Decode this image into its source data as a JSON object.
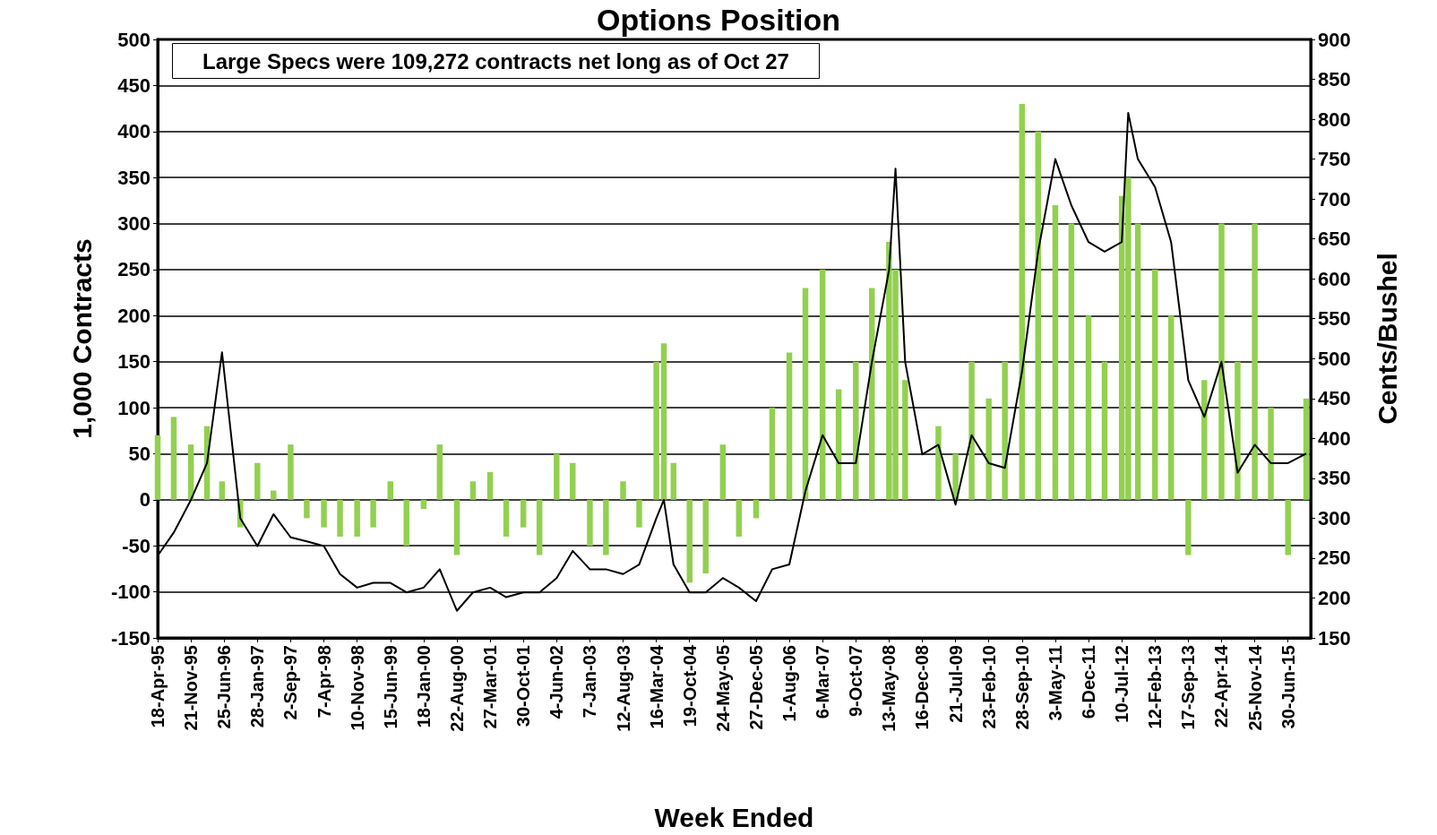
{
  "chart_data": {
    "type": "bar",
    "title": "Options Position",
    "xlabel": "Week Ended",
    "ylabel": "1,000 Contracts",
    "y2label": "Cents/Bushel",
    "annotations": [
      "Large Specs were 109,272 contracts net long as of Oct 27"
    ],
    "x": [
      "1995-04-18",
      "1995-08-01",
      "1995-11-21",
      "1996-03-05",
      "1996-06-11",
      "1996-10-08",
      "1997-01-28",
      "1997-05-13",
      "1997-09-02",
      "1997-12-16",
      "1998-04-07",
      "1998-07-21",
      "1998-11-10",
      "1999-02-23",
      "1999-06-15",
      "1999-09-28",
      "2000-01-18",
      "2000-05-02",
      "2000-08-22",
      "2000-12-05",
      "2001-03-27",
      "2001-07-10",
      "2001-10-30",
      "2002-02-12",
      "2002-06-04",
      "2002-09-17",
      "2003-01-07",
      "2003-04-22",
      "2003-08-12",
      "2003-11-25",
      "2004-03-16",
      "2004-05-04",
      "2004-07-06",
      "2004-10-19",
      "2005-02-01",
      "2005-05-24",
      "2005-09-06",
      "2005-12-27",
      "2006-04-11",
      "2006-08-01",
      "2006-11-14",
      "2007-03-06",
      "2007-06-19",
      "2007-10-09",
      "2008-01-22",
      "2008-05-13",
      "2008-06-24",
      "2008-08-26",
      "2008-12-16",
      "2009-03-31",
      "2009-07-21",
      "2009-11-03",
      "2010-02-23",
      "2010-06-08",
      "2010-09-28",
      "2011-01-11",
      "2011-05-03",
      "2011-08-16",
      "2011-12-06",
      "2012-03-20",
      "2012-07-10",
      "2012-08-21",
      "2012-10-23",
      "2013-02-12",
      "2013-05-28",
      "2013-09-17",
      "2013-12-31",
      "2014-04-22",
      "2014-08-05",
      "2014-11-25",
      "2015-03-10",
      "2015-06-30",
      "2015-10-27"
    ],
    "xlim": [
      "1995-04-18",
      "2015-11-25"
    ],
    "xticks": [
      {
        "value": "1995-04-18",
        "label": "18-Apr-95"
      },
      {
        "value": "1995-11-21",
        "label": "21-Nov-95"
      },
      {
        "value": "1996-06-25",
        "label": "25-Jun-96"
      },
      {
        "value": "1997-01-28",
        "label": "28-Jan-97"
      },
      {
        "value": "1997-09-02",
        "label": "2-Sep-97"
      },
      {
        "value": "1998-04-07",
        "label": "7-Apr-98"
      },
      {
        "value": "1998-11-10",
        "label": "10-Nov-98"
      },
      {
        "value": "1999-06-15",
        "label": "15-Jun-99"
      },
      {
        "value": "2000-01-18",
        "label": "18-Jan-00"
      },
      {
        "value": "2000-08-22",
        "label": "22-Aug-00"
      },
      {
        "value": "2001-03-27",
        "label": "27-Mar-01"
      },
      {
        "value": "2001-10-30",
        "label": "30-Oct-01"
      },
      {
        "value": "2002-06-04",
        "label": "4-Jun-02"
      },
      {
        "value": "2003-01-07",
        "label": "7-Jan-03"
      },
      {
        "value": "2003-08-12",
        "label": "12-Aug-03"
      },
      {
        "value": "2004-03-16",
        "label": "16-Mar-04"
      },
      {
        "value": "2004-10-19",
        "label": "19-Oct-04"
      },
      {
        "value": "2005-05-24",
        "label": "24-May-05"
      },
      {
        "value": "2005-12-27",
        "label": "27-Dec-05"
      },
      {
        "value": "2006-08-01",
        "label": "1-Aug-06"
      },
      {
        "value": "2007-03-06",
        "label": "6-Mar-07"
      },
      {
        "value": "2007-10-09",
        "label": "9-Oct-07"
      },
      {
        "value": "2008-05-13",
        "label": "13-May-08"
      },
      {
        "value": "2008-12-16",
        "label": "16-Dec-08"
      },
      {
        "value": "2009-07-21",
        "label": "21-Jul-09"
      },
      {
        "value": "2010-02-23",
        "label": "23-Feb-10"
      },
      {
        "value": "2010-09-28",
        "label": "28-Sep-10"
      },
      {
        "value": "2011-05-03",
        "label": "3-May-11"
      },
      {
        "value": "2011-12-06",
        "label": "6-Dec-11"
      },
      {
        "value": "2012-07-10",
        "label": "10-Jul-12"
      },
      {
        "value": "2013-02-12",
        "label": "12-Feb-13"
      },
      {
        "value": "2013-09-17",
        "label": "17-Sep-13"
      },
      {
        "value": "2014-04-22",
        "label": "22-Apr-14"
      },
      {
        "value": "2014-11-25",
        "label": "25-Nov-14"
      },
      {
        "value": "2015-06-30",
        "label": "30-Jun-15"
      }
    ],
    "ylim": [
      -150,
      500
    ],
    "yticks": [
      -150,
      -100,
      -50,
      0,
      50,
      100,
      150,
      200,
      250,
      300,
      350,
      400,
      450,
      500
    ],
    "y2lim": [
      150,
      900
    ],
    "y2ticks": [
      150,
      200,
      250,
      300,
      350,
      400,
      450,
      500,
      550,
      600,
      650,
      700,
      750,
      800,
      850,
      900
    ],
    "grid": "y",
    "series": [
      {
        "color": "#92d050",
        "values": [
          70,
          90,
          60,
          80,
          20,
          -30,
          40,
          10,
          60,
          -20,
          -30,
          -40,
          -40,
          -30,
          20,
          -50,
          -10,
          60,
          -60,
          20,
          30,
          -40,
          -30,
          -60,
          50,
          40,
          -50,
          -60,
          20,
          -30,
          150,
          170,
          40,
          -90,
          -80,
          60,
          -40,
          -20,
          100,
          160,
          230,
          250,
          120,
          150,
          230,
          280,
          250,
          130,
          0,
          80,
          50,
          150,
          110,
          150,
          430,
          400,
          320,
          300,
          200,
          150,
          330,
          350,
          300,
          250,
          200,
          -60,
          130,
          300,
          150,
          300,
          100,
          -60,
          110
        ]
      },
      {
        "type": "line",
        "axis": "y2",
        "color": "#000000",
        "values": [
          253,
          282,
          323,
          369,
          508,
          300,
          265,
          305,
          276,
          271,
          265,
          230,
          213,
          219,
          219,
          207,
          213,
          236,
          184,
          207,
          213,
          201,
          207,
          207,
          225,
          259,
          236,
          236,
          230,
          242,
          300,
          323,
          242,
          207,
          207,
          225,
          213,
          196,
          236,
          242,
          334,
          404,
          369,
          369,
          496,
          611,
          738,
          496,
          380,
          392,
          317,
          404,
          369,
          363,
          484,
          634,
          750,
          692,
          646,
          634,
          646,
          808,
          750,
          715,
          646,
          473,
          427,
          496,
          357,
          392,
          369,
          369,
          381
        ]
      }
    ]
  }
}
